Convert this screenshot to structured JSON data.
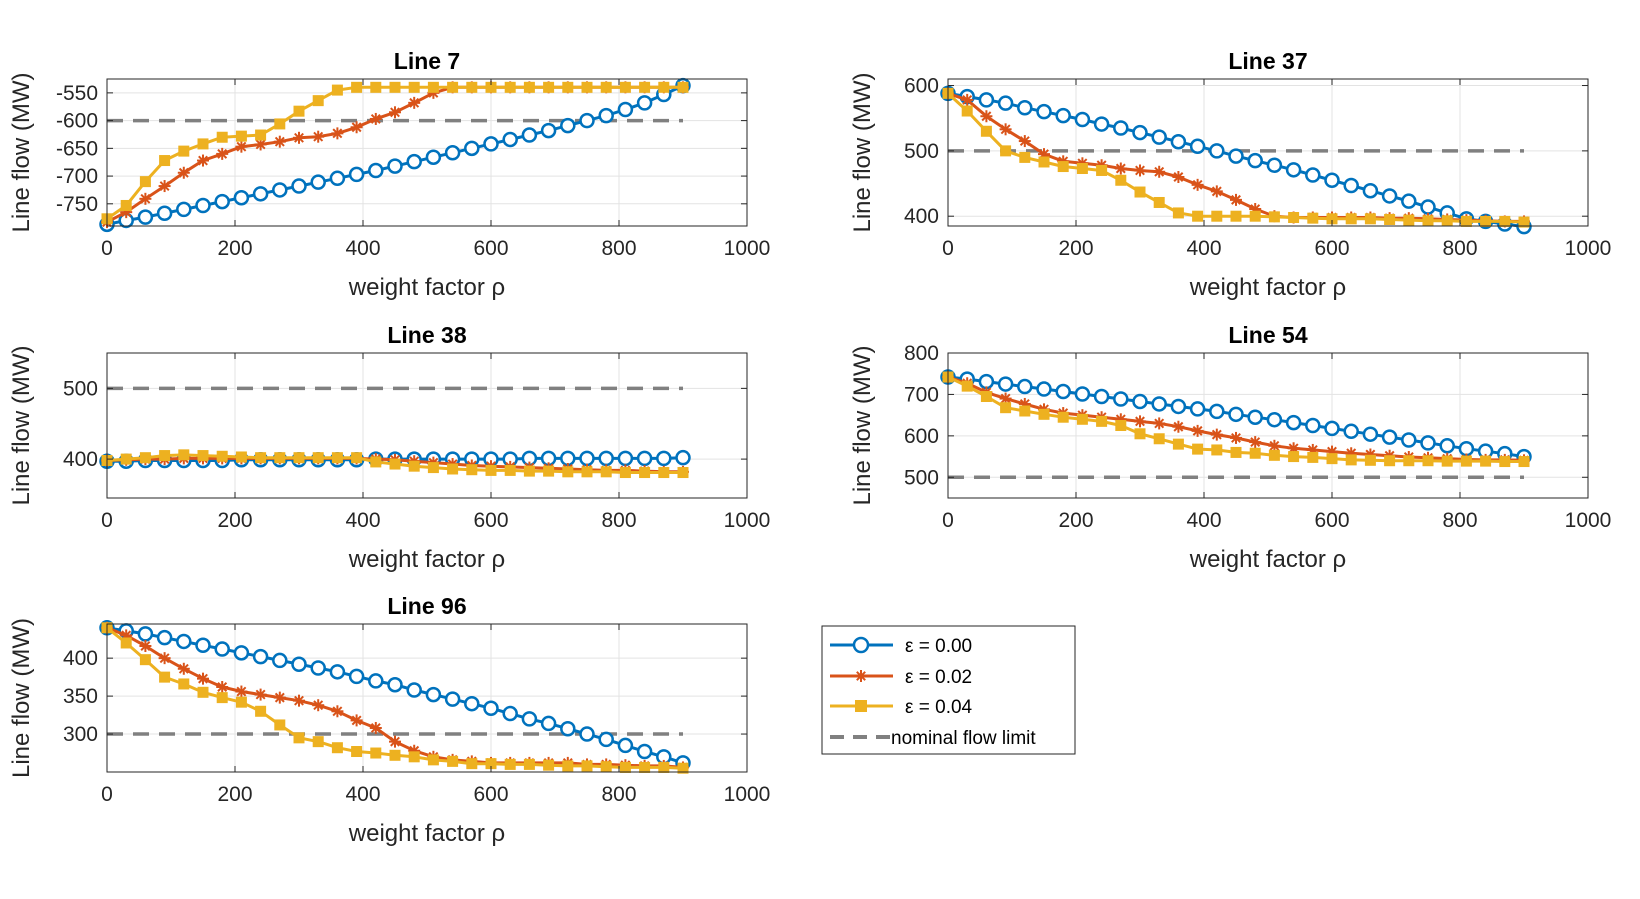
{
  "colors": {
    "eps0": "#0072BD",
    "eps2": "#D95319",
    "eps4": "#EDB120",
    "limit": "#808080",
    "grid": "#e3e3e3"
  },
  "legend": {
    "entries": [
      {
        "label": "ε  = 0.00",
        "marker": "circle",
        "color": "#0072BD"
      },
      {
        "label": "ε  = 0.02",
        "marker": "asterisk",
        "color": "#D95319"
      },
      {
        "label": "ε  = 0.04",
        "marker": "square",
        "color": "#EDB120"
      },
      {
        "label": "nominal flow limit",
        "marker": "dashed",
        "color": "#808080"
      }
    ]
  },
  "chart_data": [
    {
      "type": "line",
      "title": "Line 7",
      "xlabel": "weight factor ρ",
      "ylabel": "Line flow (MW)",
      "xlim": [
        0,
        1000
      ],
      "ylim": [
        -790,
        -525
      ],
      "xticks": [
        0,
        200,
        400,
        600,
        800,
        1000
      ],
      "yticks": [
        -750,
        -700,
        -650,
        -600,
        -550
      ],
      "grid": true,
      "limit": -600,
      "x": [
        0,
        30,
        60,
        90,
        120,
        150,
        180,
        210,
        240,
        270,
        300,
        330,
        360,
        390,
        420,
        450,
        480,
        510,
        540,
        570,
        600,
        630,
        660,
        690,
        720,
        750,
        780,
        810,
        840,
        870,
        900
      ],
      "series": [
        {
          "name": "ε  = 0.00",
          "values": [
            -787,
            -780,
            -774,
            -767,
            -760,
            -753,
            -746,
            -739,
            -732,
            -725,
            -718,
            -711,
            -704,
            -697,
            -690,
            -682,
            -674,
            -666,
            -658,
            -650,
            -642,
            -634,
            -626,
            -618,
            -609,
            -600,
            -591,
            -580,
            -568,
            -553,
            -537
          ]
        },
        {
          "name": "ε  = 0.02",
          "values": [
            -783,
            -765,
            -741,
            -718,
            -694,
            -672,
            -660,
            -647,
            -643,
            -638,
            -631,
            -629,
            -623,
            -612,
            -597,
            -585,
            -568,
            -550,
            -540,
            -540,
            -540,
            -540,
            -540,
            -540,
            -540,
            -540,
            -540,
            -540,
            -540,
            -540,
            -540
          ]
        },
        {
          "name": "ε  = 0.04",
          "values": [
            -777,
            -753,
            -710,
            -672,
            -655,
            -642,
            -630,
            -628,
            -626,
            -606,
            -583,
            -564,
            -545,
            -540,
            -540,
            -540,
            -540,
            -540,
            -540,
            -540,
            -540,
            -540,
            -540,
            -540,
            -540,
            -540,
            -540,
            -540,
            -540,
            -540,
            -540
          ]
        }
      ]
    },
    {
      "type": "line",
      "title": "Line 37",
      "xlabel": "weight factor ρ",
      "ylabel": "Line flow (MW)",
      "xlim": [
        0,
        1000
      ],
      "ylim": [
        385,
        610
      ],
      "xticks": [
        0,
        200,
        400,
        600,
        800,
        1000
      ],
      "yticks": [
        400,
        500,
        600
      ],
      "grid": true,
      "limit": 500,
      "x": [
        0,
        30,
        60,
        90,
        120,
        150,
        180,
        210,
        240,
        270,
        300,
        330,
        360,
        390,
        420,
        450,
        480,
        510,
        540,
        570,
        600,
        630,
        660,
        690,
        720,
        750,
        780,
        810,
        840,
        870,
        900
      ],
      "series": [
        {
          "name": "ε  = 0.00",
          "values": [
            588,
            583,
            578,
            573,
            566,
            560,
            554,
            548,
            541,
            535,
            528,
            521,
            514,
            507,
            500,
            492,
            485,
            478,
            471,
            463,
            455,
            447,
            439,
            431,
            423,
            414,
            405,
            396,
            392,
            388,
            384
          ]
        },
        {
          "name": "ε  = 0.02",
          "values": [
            588,
            578,
            553,
            533,
            515,
            495,
            484,
            481,
            478,
            473,
            470,
            468,
            460,
            448,
            438,
            425,
            411,
            400,
            398,
            398,
            398,
            398,
            398,
            397,
            397,
            396,
            395,
            394,
            393,
            392,
            392
          ]
        },
        {
          "name": "ε  = 0.04",
          "values": [
            588,
            561,
            530,
            500,
            490,
            483,
            476,
            473,
            470,
            455,
            437,
            421,
            405,
            400,
            400,
            400,
            400,
            399,
            398,
            397,
            396,
            396,
            396,
            395,
            394,
            393,
            393,
            392,
            392,
            392,
            391
          ]
        }
      ]
    },
    {
      "type": "line",
      "title": "Line 38",
      "xlabel": "weight factor ρ",
      "ylabel": "Line flow (MW)",
      "xlim": [
        0,
        1000
      ],
      "ylim": [
        345,
        550
      ],
      "xticks": [
        0,
        200,
        400,
        600,
        800,
        1000
      ],
      "yticks": [
        400,
        500
      ],
      "grid": true,
      "limit": 500,
      "x": [
        0,
        30,
        60,
        90,
        120,
        150,
        180,
        210,
        240,
        270,
        300,
        330,
        360,
        390,
        420,
        450,
        480,
        510,
        540,
        570,
        600,
        630,
        660,
        690,
        720,
        750,
        780,
        810,
        840,
        870,
        900
      ],
      "series": [
        {
          "name": "ε  = 0.00",
          "values": [
            397,
            397,
            398,
            398,
            398,
            398,
            398,
            399,
            399,
            399,
            399,
            399,
            399,
            399,
            400,
            400,
            400,
            400,
            400,
            400,
            400,
            400,
            401,
            401,
            401,
            401,
            401,
            401,
            401,
            401,
            402
          ]
        },
        {
          "name": "ε  = 0.02",
          "values": [
            398,
            399,
            400,
            400,
            401,
            401,
            401,
            401,
            401,
            401,
            401,
            401,
            401,
            401,
            400,
            399,
            397,
            395,
            393,
            391,
            390,
            389,
            388,
            387,
            386,
            385,
            384,
            384,
            383,
            382,
            382
          ]
        },
        {
          "name": "ε  = 0.04",
          "values": [
            398,
            400,
            402,
            405,
            406,
            405,
            404,
            403,
            402,
            402,
            402,
            402,
            402,
            402,
            396,
            393,
            390,
            388,
            386,
            385,
            384,
            384,
            383,
            383,
            382,
            382,
            382,
            381,
            381,
            381,
            381
          ]
        }
      ]
    },
    {
      "type": "line",
      "title": "Line 54",
      "xlabel": "weight factor ρ",
      "ylabel": "Line flow (MW)",
      "xlim": [
        0,
        1000
      ],
      "ylim": [
        450,
        800
      ],
      "xticks": [
        0,
        200,
        400,
        600,
        800,
        1000
      ],
      "yticks": [
        500,
        600,
        700,
        800
      ],
      "grid": true,
      "limit": 500,
      "x": [
        0,
        30,
        60,
        90,
        120,
        150,
        180,
        210,
        240,
        270,
        300,
        330,
        360,
        390,
        420,
        450,
        480,
        510,
        540,
        570,
        600,
        630,
        660,
        690,
        720,
        750,
        780,
        810,
        840,
        870,
        900
      ],
      "series": [
        {
          "name": "ε  = 0.00",
          "values": [
            742,
            737,
            731,
            725,
            719,
            713,
            707,
            701,
            695,
            689,
            683,
            677,
            671,
            665,
            659,
            652,
            645,
            639,
            632,
            625,
            618,
            611,
            604,
            597,
            590,
            583,
            576,
            569,
            563,
            557,
            550
          ]
        },
        {
          "name": "ε  = 0.02",
          "values": [
            742,
            727,
            705,
            690,
            677,
            664,
            655,
            650,
            645,
            640,
            635,
            630,
            622,
            612,
            603,
            595,
            585,
            576,
            570,
            566,
            562,
            558,
            555,
            552,
            549,
            547,
            545,
            543,
            542,
            542,
            541
          ]
        },
        {
          "name": "ε  = 0.04",
          "values": [
            742,
            720,
            695,
            668,
            660,
            652,
            645,
            640,
            635,
            625,
            605,
            593,
            580,
            568,
            566,
            560,
            558,
            553,
            550,
            548,
            545,
            542,
            541,
            540,
            540,
            540,
            539,
            539,
            539,
            538,
            538
          ]
        }
      ]
    },
    {
      "type": "line",
      "title": "Line 96",
      "xlabel": "weight factor ρ",
      "ylabel": "Line flow (MW)",
      "xlim": [
        0,
        1000
      ],
      "ylim": [
        250,
        445
      ],
      "xticks": [
        0,
        200,
        400,
        600,
        800,
        1000
      ],
      "yticks": [
        300,
        350,
        400
      ],
      "grid": true,
      "limit": 300,
      "x": [
        0,
        30,
        60,
        90,
        120,
        150,
        180,
        210,
        240,
        270,
        300,
        330,
        360,
        390,
        420,
        450,
        480,
        510,
        540,
        570,
        600,
        630,
        660,
        690,
        720,
        750,
        780,
        810,
        840,
        870,
        900
      ],
      "series": [
        {
          "name": "ε  = 0.00",
          "values": [
            440,
            436,
            432,
            427,
            422,
            417,
            412,
            407,
            402,
            397,
            392,
            387,
            382,
            376,
            370,
            365,
            358,
            352,
            346,
            340,
            334,
            327,
            320,
            314,
            307,
            300,
            293,
            285,
            277,
            270,
            262
          ]
        },
        {
          "name": "ε  = 0.02",
          "values": [
            440,
            430,
            416,
            400,
            386,
            373,
            362,
            356,
            352,
            348,
            344,
            338,
            330,
            318,
            308,
            290,
            278,
            270,
            266,
            264,
            262,
            262,
            262,
            262,
            262,
            260,
            260,
            259,
            258,
            258,
            256
          ]
        },
        {
          "name": "ε  = 0.04",
          "values": [
            440,
            420,
            398,
            375,
            366,
            355,
            348,
            342,
            330,
            312,
            295,
            290,
            282,
            277,
            275,
            272,
            270,
            266,
            264,
            261,
            261,
            260,
            260,
            259,
            258,
            258,
            257,
            256,
            256,
            256,
            255
          ]
        }
      ]
    }
  ]
}
